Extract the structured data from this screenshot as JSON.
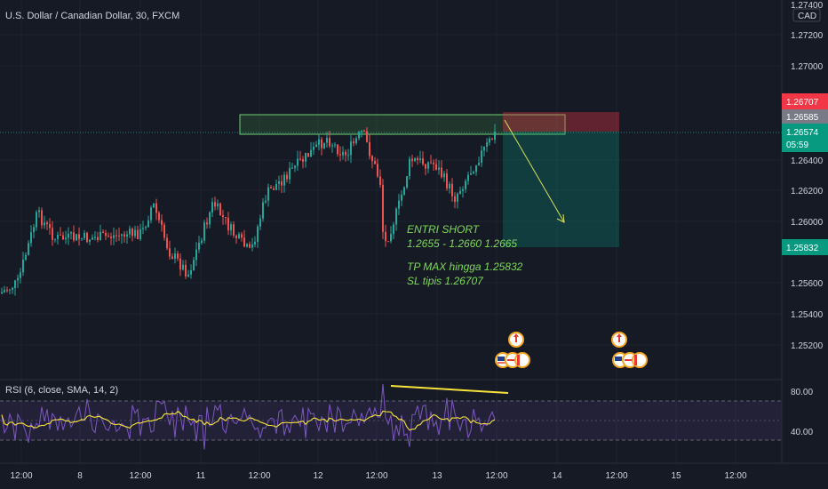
{
  "chart_title": "U.S. Dollar / Canadian Dollar, 30, FXCM",
  "currency_label": "CAD",
  "top_label": "1.27400",
  "price_ticks": [
    "1.27200",
    "1.27000",
    "1.26400",
    "1.26200",
    "1.26000",
    "1.25600",
    "1.25400",
    "1.25200"
  ],
  "price_badges": {
    "sl": "1.26707",
    "last_close": "1.26585",
    "current": "1.26574",
    "countdown": "05:59",
    "tp": "1.25832"
  },
  "colors": {
    "sl": "#f23645",
    "tp": "#089981",
    "up": "#26a69a",
    "down": "#ef5350",
    "rsi": "#7e57c2",
    "rsi_ma": "#f7e33b",
    "annotation": "#7ed957"
  },
  "annotation": {
    "line1": "ENTRI SHORT",
    "line2": "1.2655 - 1.2660 1.2665",
    "line3": "TP MAX hingga 1.25832",
    "line4": "SL tipis 1.26707"
  },
  "rsi": {
    "label": "RSI (6, close, SMA, 14, 2)",
    "ticks": [
      "80.00",
      "40.00"
    ]
  },
  "time_axis": [
    "12:00",
    "8",
    "12:00",
    "11",
    "12:00",
    "12",
    "12:00",
    "13",
    "12:00",
    "14",
    "12:00",
    "15",
    "12:00"
  ],
  "event_icons": [
    "canada-flag-icon",
    "us-flag-icon"
  ],
  "chart_data": {
    "type": "candlestick",
    "symbol": "USDCAD",
    "timeframe": "30",
    "ylim": [
      1.251,
      1.2745
    ],
    "entry_zone": [
      1.2655,
      1.2665
    ],
    "stop_loss": 1.26707,
    "take_profit": 1.25832,
    "current_price": 1.26574,
    "rsi_range": [
      20,
      100
    ],
    "rsi_bands": [
      80,
      40
    ]
  }
}
